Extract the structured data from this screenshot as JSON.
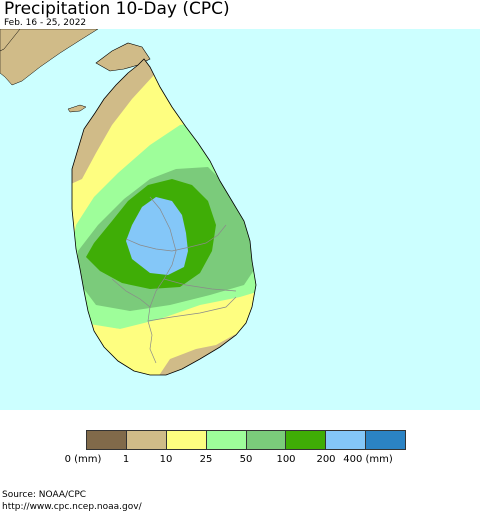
{
  "title": "Precipitation 10-Day (CPC)",
  "subtitle": "Feb. 16 - 25, 2022",
  "legend": {
    "colors": [
      "#816a4a",
      "#d0bb88",
      "#fefe80",
      "#9efe9a",
      "#7bcb7b",
      "#3fad06",
      "#84c7f8",
      "#2b83c4"
    ],
    "ticks": [
      "0 (mm)",
      "1",
      "10",
      "25",
      "50",
      "100",
      "200",
      "400 (mm)"
    ]
  },
  "map": {
    "ocean_color": "#ccffff",
    "district_line_color": "#8a8a8a"
  },
  "source": {
    "line1": "Source: NOAA/CPC",
    "line2": "http://www.cpc.ncep.noaa.gov/"
  }
}
